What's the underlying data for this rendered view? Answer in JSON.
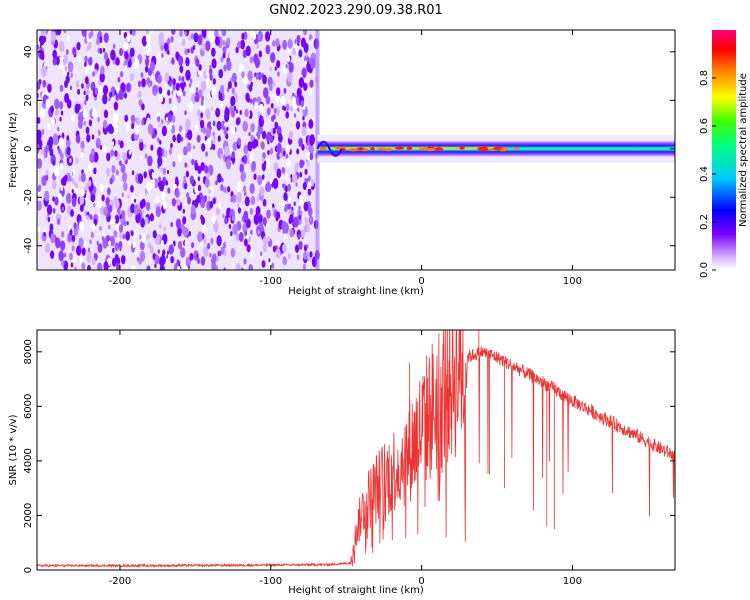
{
  "title": "GN02.2023.290.09.38.R01",
  "chart_data": [
    {
      "type": "heatmap",
      "xlabel": "Height of straight line (km)",
      "ylabel": "Frequency (Hz)",
      "xlim": [
        -255,
        168
      ],
      "ylim": [
        -50,
        49
      ],
      "xticks": [
        -200,
        -100,
        0,
        100
      ],
      "yticks": [
        -40,
        -20,
        0,
        20,
        40
      ],
      "noise_region": [
        -255,
        -69
      ],
      "signal_region": [
        -69,
        168
      ],
      "signal_center_hz": 0,
      "colorbar": {
        "label": "Normalized spectral amplitude",
        "range": [
          0,
          1
        ],
        "ticks": [
          "0.0",
          "0.2",
          "0.4",
          "0.6",
          "0.8"
        ]
      }
    },
    {
      "type": "line",
      "xlabel": "Height of straight line (km)",
      "ylabel": "SNR (10 * v/v)",
      "xlim": [
        -255,
        168
      ],
      "ylim": [
        0,
        8800
      ],
      "xticks": [
        -200,
        -100,
        0,
        100
      ],
      "yticks": [
        0,
        2000,
        4000,
        6000,
        8000
      ],
      "color": "#ee3333",
      "envelope": {
        "x": [
          -255,
          -180,
          -100,
          -60,
          -47,
          -43,
          -38,
          -30,
          -20,
          -10,
          0,
          10,
          20,
          30,
          40,
          50,
          60,
          80,
          100,
          120,
          140,
          160,
          168
        ],
        "y": [
          160,
          160,
          180,
          200,
          260,
          1500,
          2400,
          3000,
          3600,
          4200,
          5200,
          6200,
          7100,
          7800,
          8000,
          7800,
          7500,
          6900,
          6200,
          5600,
          5000,
          4400,
          4200
        ]
      },
      "spikes": [
        {
          "x": 38,
          "y": 8800
        },
        {
          "x": -8,
          "y": 7600
        },
        {
          "x": 83,
          "y": 1600
        },
        {
          "x": 88,
          "y": 1500
        },
        {
          "x": 45,
          "y": 3500
        },
        {
          "x": 55,
          "y": 3000
        }
      ]
    }
  ]
}
